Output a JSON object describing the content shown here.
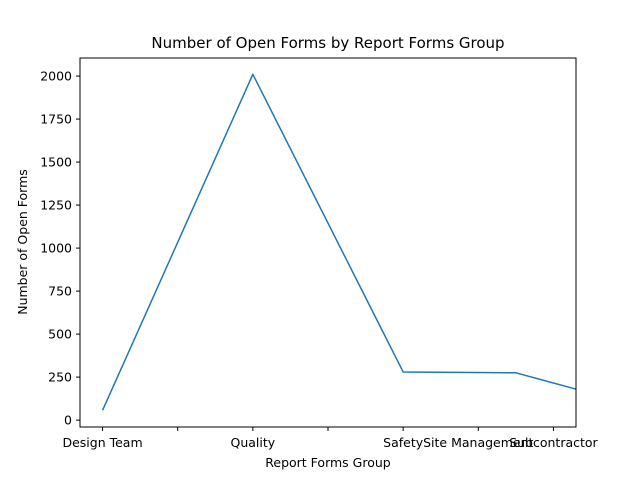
{
  "chart_data": {
    "type": "line",
    "title": "Number of Open Forms by Report Forms Group",
    "xlabel": "Report Forms Group",
    "ylabel": "Number of Open Forms",
    "x_ticks": [
      {
        "pos": 0,
        "label": "Design Team"
      },
      {
        "pos": 1,
        "label": ""
      },
      {
        "pos": 2,
        "label": "Quality"
      },
      {
        "pos": 3,
        "label": ""
      },
      {
        "pos": 4,
        "label": "Safety"
      },
      {
        "pos": 5,
        "label": "Site Management"
      },
      {
        "pos": 6,
        "label": "Subcontractor"
      }
    ],
    "y_ticks": [
      0,
      250,
      500,
      750,
      1000,
      1250,
      1500,
      1750,
      2000
    ],
    "xlim": [
      -0.3,
      6.3
    ],
    "ylim": [
      -40,
      2105
    ],
    "series": [
      {
        "color": "#1f77b4",
        "points": [
          {
            "x": 0,
            "y": 57
          },
          {
            "x": 2,
            "y": 2010
          },
          {
            "x": 4,
            "y": 280
          },
          {
            "x": 5.5,
            "y": 275
          },
          {
            "x": 7,
            "y": 97
          }
        ]
      }
    ],
    "grid": false,
    "legend": "none"
  }
}
